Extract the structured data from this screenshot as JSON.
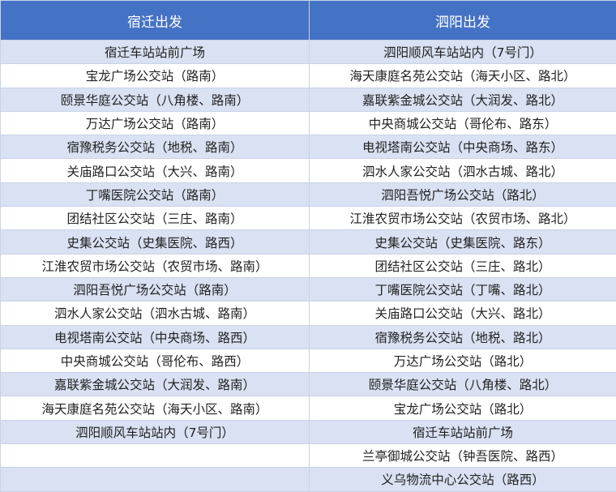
{
  "colors": {
    "header": "#4472C4",
    "band": "#D9E1F2"
  },
  "headers": [
    "宿迁出发",
    "泗阳出发"
  ],
  "rows": [
    [
      "宿迁车站站前广场",
      "泗阳顺风车站站内（7号门）"
    ],
    [
      "宝龙广场公交站（路南）",
      "海天康庭名苑公交站（海天小区、路北）"
    ],
    [
      "颐景华庭公交站（八角楼、路南）",
      "嘉联紫金城公交站（大润发、路北）"
    ],
    [
      "万达广场公交站（路南）",
      "中央商城公交站（哥伦布、路东）"
    ],
    [
      "宿豫税务公交站（地税、路南）",
      "电视塔南公交站（中央商场、路东）"
    ],
    [
      "关庙路口公交站（大兴、路南）",
      "泗水人家公交站（泗水古城、路北）"
    ],
    [
      "丁嘴医院公交站（路南）",
      "泗阳吾悦广场公交站（路北）"
    ],
    [
      "团结社区公交站（三庄、路南）",
      "江淮农贸市场公交站（农贸市场、路北）"
    ],
    [
      "史集公交站（史集医院、路西）",
      "史集公交站（史集医院、路东）"
    ],
    [
      "江淮农贸市场公交站（农贸市场、路南）",
      "团结社区公交站（三庄、路北）"
    ],
    [
      "泗阳吾悦广场公交站（路南）",
      "丁嘴医院公交站（丁嘴、路北）"
    ],
    [
      "泗水人家公交站（泗水古城、路南）",
      "关庙路口公交站（大兴、路北）"
    ],
    [
      "电视塔南公交站（中央商场、路西）",
      "宿豫税务公交站（地税、路北）"
    ],
    [
      "中央商城公交站（哥伦布、路西）",
      "万达广场公交站（路北）"
    ],
    [
      "嘉联紫金城公交站（大润发、路南）",
      "颐景华庭公交站（八角楼、路北）"
    ],
    [
      "海天康庭名苑公交站（海天小区、路南）",
      "宝龙广场公交站（路北）"
    ],
    [
      "泗阳顺风车站站内（7号门）",
      "宿迁车站站前广场"
    ],
    [
      "",
      "兰亭御城公交站（钟吾医院、路西）"
    ],
    [
      "",
      "义乌物流中心公交站（路西）"
    ]
  ]
}
